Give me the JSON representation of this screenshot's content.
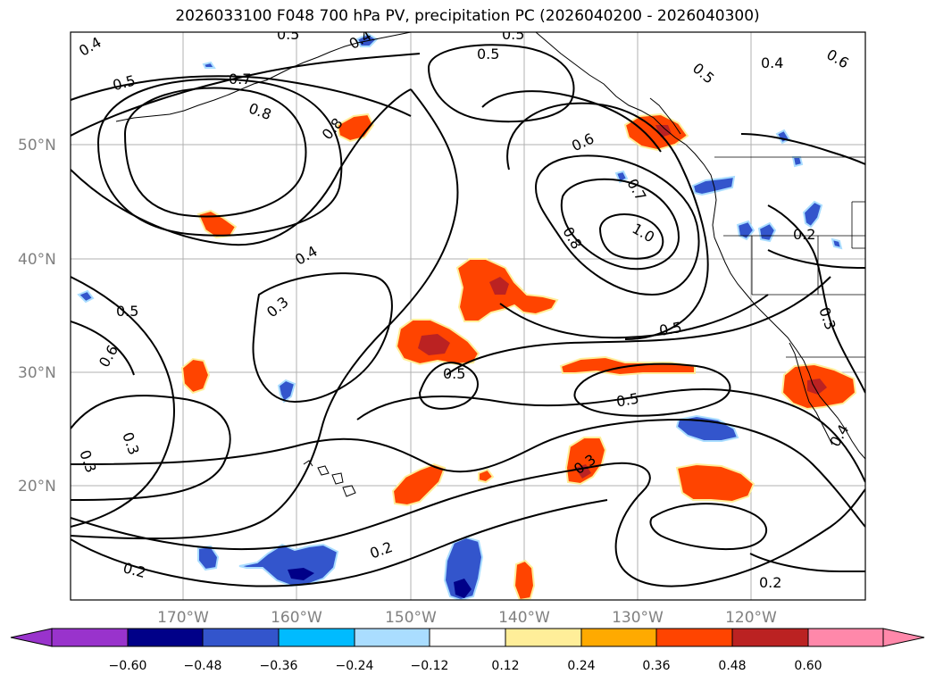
{
  "title": "2026033100 F048 700 hPa PV, precipitation PC (2026040200 - 2026040300)",
  "map": {
    "lat_labels": [
      "50°N",
      "40°N",
      "30°N",
      "20°N"
    ],
    "lon_labels": [
      "170°W",
      "160°W",
      "150°W",
      "140°W",
      "130°W",
      "120°W"
    ],
    "contour_labels": [
      "0.4",
      "0.5",
      "0.5",
      "0.4",
      "0.5",
      "0.5",
      "0.7",
      "0.8",
      "0.8",
      "0.5",
      "0.4",
      "0.6",
      "0.7",
      "0.6",
      "1.0",
      "0.8",
      "0.4",
      "0.3",
      "0.5",
      "0.6",
      "0.5",
      "0.5",
      "0.5",
      "0.3",
      "0.3",
      "0.3",
      "0.3",
      "0.2",
      "0.2",
      "0.2",
      "0.2",
      "0.4",
      "0.3",
      "0.5",
      "0.4"
    ]
  },
  "colorbar": {
    "ticks": [
      "−0.60",
      "−0.48",
      "−0.36",
      "−0.24",
      "−0.12",
      "0.12",
      "0.24",
      "0.36",
      "0.48",
      "0.60"
    ],
    "colors": [
      "#9933cc",
      "#000088",
      "#3355cc",
      "#00bbff",
      "#aaddff",
      "#ffffff",
      "#ffee99",
      "#ffaa00",
      "#ff4400",
      "#bb2222",
      "#ff88aa"
    ]
  }
}
